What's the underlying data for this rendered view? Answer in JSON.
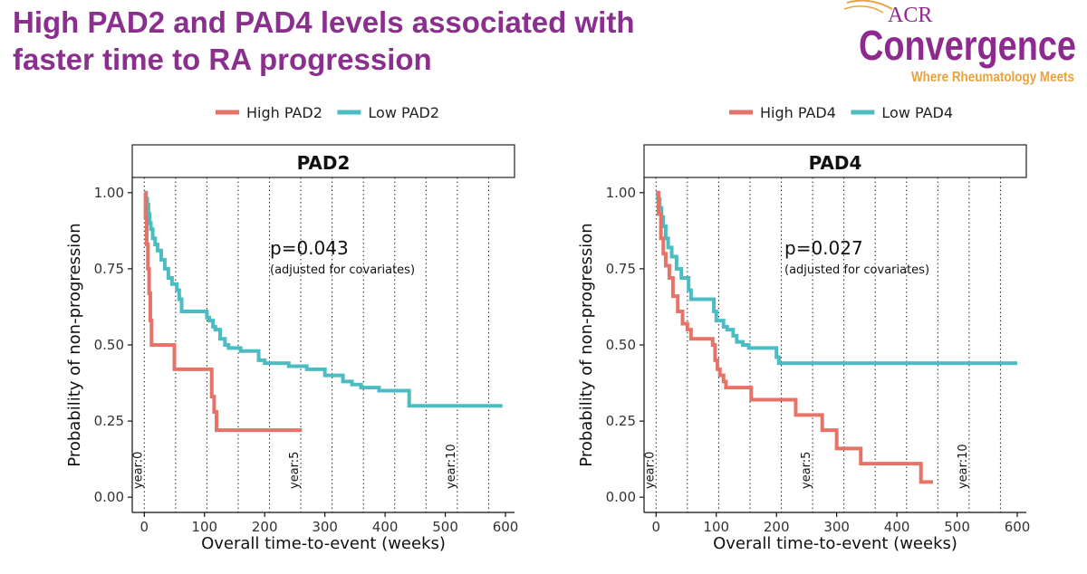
{
  "slide": {
    "title_line1": "High PAD2 and PAD4 levels associated with",
    "title_line2": "faster time to RA progression"
  },
  "logo": {
    "acr": "ACR",
    "convergence": "Convergence",
    "tagline": "Where Rheumatology Meets"
  },
  "colors": {
    "high": "#E57368",
    "low": "#4BBDC2",
    "title": "#8B2F8F",
    "logo_purple": "#8E2A8F",
    "logo_orange": "#E9A23B"
  },
  "chart_data": [
    {
      "type": "line",
      "subtype": "kaplan-meier",
      "title": "PAD2",
      "xlabel": "Overall time-to-event (weeks)",
      "ylabel": "Probability of non-progression",
      "xlim": [
        -20,
        615
      ],
      "ylim": [
        -0.05,
        1.05
      ],
      "xticks": [
        0,
        100,
        200,
        300,
        400,
        500,
        600
      ],
      "yticks": [
        0.0,
        0.25,
        0.5,
        0.75,
        1.0
      ],
      "ytick_labels": [
        "0.00",
        "0.25",
        "0.50",
        "0.75",
        "1.00"
      ],
      "legend": [
        "High PAD2",
        "Low PAD2"
      ],
      "vlines": [
        0,
        52,
        104,
        156,
        208,
        260,
        312,
        364,
        416,
        468,
        520,
        572
      ],
      "vline_labels": [
        {
          "x": 0,
          "text": "year:0"
        },
        {
          "x": 260,
          "text": "year:5"
        },
        {
          "x": 520,
          "text": "year:10"
        }
      ],
      "annotation": {
        "text": "p=0.043",
        "sub": "(adjusted for covariates)"
      },
      "series": [
        {
          "name": "High PAD2",
          "color": "#E57368",
          "x": [
            0,
            2,
            4,
            6,
            8,
            10,
            12,
            50,
            65,
            112,
            116,
            120,
            262
          ],
          "y": [
            1.0,
            0.92,
            0.83,
            0.75,
            0.67,
            0.58,
            0.5,
            0.42,
            0.42,
            0.33,
            0.28,
            0.22,
            0.22
          ]
        },
        {
          "name": "Low PAD2",
          "color": "#4BBDC2",
          "x": [
            0,
            3,
            5,
            7,
            9,
            11,
            14,
            18,
            22,
            28,
            34,
            40,
            46,
            54,
            58,
            62,
            100,
            104,
            108,
            114,
            118,
            126,
            134,
            140,
            160,
            168,
            190,
            200,
            240,
            270,
            300,
            330,
            345,
            360,
            375,
            390,
            440,
            540,
            595
          ],
          "y": [
            1.0,
            0.98,
            0.96,
            0.93,
            0.9,
            0.88,
            0.85,
            0.83,
            0.81,
            0.78,
            0.75,
            0.72,
            0.7,
            0.68,
            0.65,
            0.61,
            0.61,
            0.59,
            0.58,
            0.56,
            0.55,
            0.52,
            0.5,
            0.49,
            0.48,
            0.48,
            0.45,
            0.44,
            0.43,
            0.42,
            0.4,
            0.38,
            0.37,
            0.36,
            0.36,
            0.35,
            0.3,
            0.3,
            0.3
          ]
        }
      ]
    },
    {
      "type": "line",
      "subtype": "kaplan-meier",
      "title": "PAD4",
      "xlabel": "Overall time-to-event (weeks)",
      "ylabel": "Probability of non-progression",
      "xlim": [
        -20,
        615
      ],
      "ylim": [
        -0.05,
        1.05
      ],
      "xticks": [
        0,
        100,
        200,
        300,
        400,
        500,
        600
      ],
      "yticks": [
        0.0,
        0.25,
        0.5,
        0.75,
        1.0
      ],
      "ytick_labels": [
        "0.00",
        "0.25",
        "0.50",
        "0.75",
        "1.00"
      ],
      "legend": [
        "High PAD4",
        "Low PAD4"
      ],
      "vlines": [
        0,
        52,
        104,
        156,
        208,
        260,
        312,
        364,
        416,
        468,
        520,
        572
      ],
      "vline_labels": [
        {
          "x": 0,
          "text": "year:0"
        },
        {
          "x": 260,
          "text": "year:5"
        },
        {
          "x": 520,
          "text": "year:10"
        }
      ],
      "annotation": {
        "text": "p=0.027",
        "sub": "(adjusted for covariates)"
      },
      "series": [
        {
          "name": "High PAD4",
          "color": "#E57368",
          "x": [
            0,
            4,
            8,
            12,
            16,
            22,
            28,
            36,
            44,
            52,
            58,
            94,
            98,
            102,
            106,
            112,
            116,
            158,
            232,
            276,
            300,
            312,
            340,
            440,
            460
          ],
          "y": [
            1.0,
            0.93,
            0.85,
            0.8,
            0.76,
            0.72,
            0.66,
            0.61,
            0.57,
            0.55,
            0.52,
            0.5,
            0.45,
            0.42,
            0.4,
            0.38,
            0.36,
            0.32,
            0.27,
            0.22,
            0.16,
            0.16,
            0.11,
            0.05,
            0.05
          ]
        },
        {
          "name": "Low PAD4",
          "color": "#4BBDC2",
          "x": [
            0,
            3,
            6,
            9,
            12,
            16,
            20,
            26,
            34,
            42,
            54,
            58,
            96,
            100,
            112,
            118,
            128,
            134,
            144,
            154,
            158,
            200,
            204,
            208,
            600
          ],
          "y": [
            1.0,
            0.98,
            0.95,
            0.92,
            0.89,
            0.85,
            0.82,
            0.79,
            0.75,
            0.72,
            0.68,
            0.65,
            0.61,
            0.58,
            0.56,
            0.55,
            0.53,
            0.51,
            0.5,
            0.49,
            0.49,
            0.46,
            0.44,
            0.44,
            0.44
          ]
        }
      ]
    }
  ]
}
